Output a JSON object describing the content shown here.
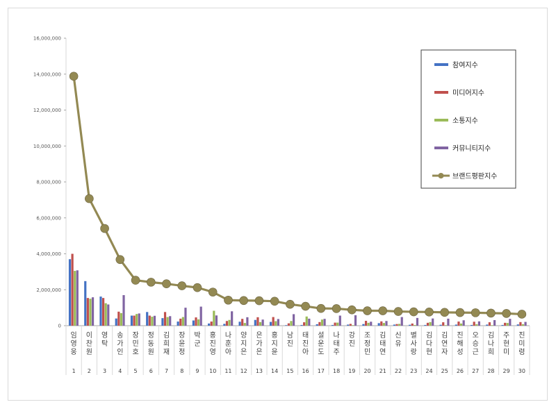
{
  "chart_data": {
    "type": "bar",
    "y_ticks": [
      "0",
      "2,000,000",
      "4,000,000",
      "6,000,000",
      "8,000,000",
      "10,000,000",
      "12,000,000",
      "14,000,000",
      "16,000,000"
    ],
    "ylim": [
      0,
      16000000
    ],
    "categories": [
      "임영웅",
      "이찬원",
      "영탁",
      "송가인",
      "장민호",
      "정동원",
      "김희재",
      "장윤정",
      "박군",
      "홍진영",
      "나훈아",
      "양지은",
      "은가은",
      "홍지윤",
      "남진",
      "태진아",
      "설운도",
      "나태주",
      "강진",
      "조정민",
      "김태연",
      "신유",
      "별사랑",
      "김다현",
      "김연자",
      "진해성",
      "오승근",
      "김나희",
      "주현미",
      "진미령"
    ],
    "ranks": [
      "1",
      "2",
      "3",
      "4",
      "5",
      "6",
      "7",
      "8",
      "9",
      "10",
      "11",
      "12",
      "13",
      "14",
      "15",
      "16",
      "17",
      "18",
      "19",
      "20",
      "21",
      "22",
      "23",
      "24",
      "25",
      "26",
      "27",
      "28",
      "29",
      "30"
    ],
    "legend_position": "top-right",
    "series": [
      {
        "name": "참여지수",
        "type": "bar",
        "color": "#4472c4",
        "values": [
          3700000,
          2480000,
          1620000,
          400000,
          560000,
          760000,
          420000,
          230000,
          290000,
          120000,
          100000,
          220000,
          320000,
          210000,
          30000,
          40000,
          80000,
          40000,
          60000,
          90000,
          140000,
          60000,
          50000,
          40000,
          50000,
          60000,
          40000,
          60000,
          40000,
          70000
        ]
      },
      {
        "name": "미디어지수",
        "type": "bar",
        "color": "#c0504d",
        "values": [
          4000000,
          1540000,
          1540000,
          780000,
          560000,
          560000,
          760000,
          390000,
          460000,
          230000,
          260000,
          380000,
          470000,
          480000,
          130000,
          190000,
          200000,
          170000,
          100000,
          270000,
          240000,
          90000,
          120000,
          160000,
          190000,
          230000,
          220000,
          190000,
          160000,
          200000
        ]
      },
      {
        "name": "소통지수",
        "type": "bar",
        "color": "#9bbb59",
        "values": [
          3050000,
          1500000,
          1250000,
          700000,
          650000,
          500000,
          480000,
          480000,
          350000,
          830000,
          320000,
          150000,
          200000,
          250000,
          260000,
          510000,
          340000,
          170000,
          30000,
          160000,
          150000,
          100000,
          40000,
          200000,
          30000,
          120000,
          80000,
          30000,
          150000,
          80000
        ]
      },
      {
        "name": "커뮤니티지수",
        "type": "bar",
        "color": "#8064a2",
        "values": [
          3080000,
          1580000,
          1180000,
          1700000,
          680000,
          550000,
          530000,
          1000000,
          1060000,
          570000,
          800000,
          470000,
          340000,
          370000,
          640000,
          390000,
          380000,
          560000,
          580000,
          220000,
          260000,
          480000,
          430000,
          400000,
          390000,
          300000,
          240000,
          310000,
          380000,
          210000
        ]
      },
      {
        "name": "브랜드평판지수",
        "type": "line",
        "color": "#938953",
        "values": [
          13880000,
          7070000,
          5410000,
          3680000,
          2530000,
          2420000,
          2330000,
          2220000,
          2120000,
          1870000,
          1420000,
          1400000,
          1390000,
          1360000,
          1190000,
          1080000,
          960000,
          950000,
          880000,
          830000,
          830000,
          790000,
          770000,
          760000,
          740000,
          730000,
          720000,
          700000,
          680000,
          640000
        ]
      }
    ]
  }
}
